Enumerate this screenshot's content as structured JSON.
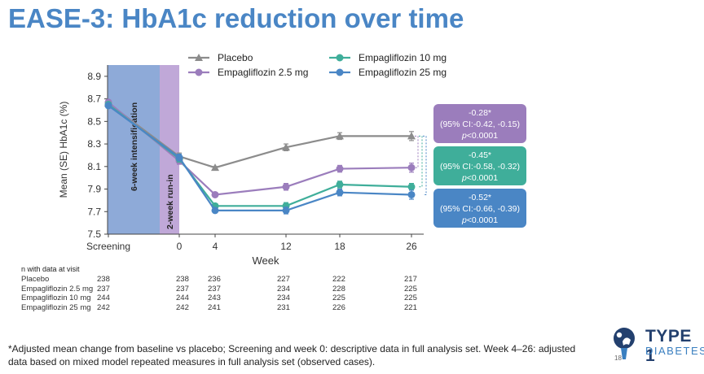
{
  "header": {
    "title": "EASE-3: HbA1c reduction over time"
  },
  "chart_data": {
    "type": "line",
    "title": "EASE-3: HbA1c reduction over time",
    "ylabel": "Mean (SE) HbA1c (%)",
    "xlabel": "Week",
    "ylim": [
      7.5,
      9.0
    ],
    "yticks": [
      "7.5",
      "7.7",
      "7.9",
      "8.1",
      "8.3",
      "8.5",
      "8.7",
      "8.9"
    ],
    "x": [
      "Screening",
      "0",
      "4",
      "12",
      "18",
      "26"
    ],
    "series": [
      {
        "name": "Placebo",
        "marker": "triangle",
        "color": "#8c8c8c",
        "values": [
          8.66,
          8.19,
          8.09,
          8.27,
          8.37,
          8.37
        ],
        "se": [
          0.02,
          0.03,
          0.01,
          0.03,
          0.03,
          0.04
        ]
      },
      {
        "name": "Empagliflozin 2.5 mg",
        "marker": "circle",
        "color": "#9b7dbc",
        "values": [
          8.67,
          8.15,
          7.85,
          7.92,
          8.08,
          8.09
        ],
        "se": [
          0.02,
          0.03,
          0.02,
          0.03,
          0.03,
          0.04
        ]
      },
      {
        "name": "Empagliflozin 10 mg",
        "marker": "circle",
        "color": "#3fae9a",
        "values": [
          8.65,
          8.17,
          7.75,
          7.75,
          7.94,
          7.92
        ],
        "se": [
          0.02,
          0.03,
          0.02,
          0.03,
          0.03,
          0.03
        ]
      },
      {
        "name": "Empagliflozin 25 mg",
        "marker": "circle",
        "color": "#4a86c5",
        "values": [
          8.64,
          8.18,
          7.71,
          7.71,
          7.87,
          7.85
        ],
        "se": [
          0.02,
          0.03,
          0.02,
          0.03,
          0.03,
          0.04
        ]
      }
    ],
    "phases": [
      {
        "label": "6-week intensification",
        "color": "#8eaad8"
      },
      {
        "label": "2-week run-in",
        "color": "#c0a8d8"
      }
    ],
    "annotations": [
      {
        "line1": "-0.28*",
        "line2": "(95% CI:-0.42, -0.15)",
        "p_prefix": "p",
        "p_value": "<0.0001",
        "color": "#9b7dbc"
      },
      {
        "line1": "-0.45*",
        "line2": "(95% CI:-0.58, -0.32)",
        "p_prefix": "p",
        "p_value": "<0.0001",
        "color": "#3fae9a"
      },
      {
        "line1": "-0.52*",
        "line2": "(95% CI:-0.66, -0.39)",
        "p_prefix": "p",
        "p_value": "<0.0001",
        "color": "#4a86c5"
      }
    ],
    "legend_position": "top"
  },
  "n_table": {
    "heading": "n with data at visit",
    "rows": [
      {
        "label": "Placebo",
        "values": [
          "238",
          "238",
          "236",
          "227",
          "222",
          "217"
        ]
      },
      {
        "label": "Empagliflozin 2.5 mg",
        "values": [
          "237",
          "237",
          "237",
          "234",
          "228",
          "225"
        ]
      },
      {
        "label": "Empagliflozin 10 mg",
        "values": [
          "244",
          "244",
          "243",
          "234",
          "225",
          "225"
        ]
      },
      {
        "label": "Empagliflozin 25 mg",
        "values": [
          "242",
          "242",
          "241",
          "231",
          "226",
          "221"
        ]
      }
    ]
  },
  "footnote": "*Adjusted mean change from baseline vs placebo; Screening and week 0: descriptive data in full analysis set. Week 4–26: adjusted data based on mixed model repeated measures in full analysis set (observed cases).",
  "page_number": "18",
  "logo": {
    "line1": "TYPE 1",
    "line2": "DIABETES"
  }
}
